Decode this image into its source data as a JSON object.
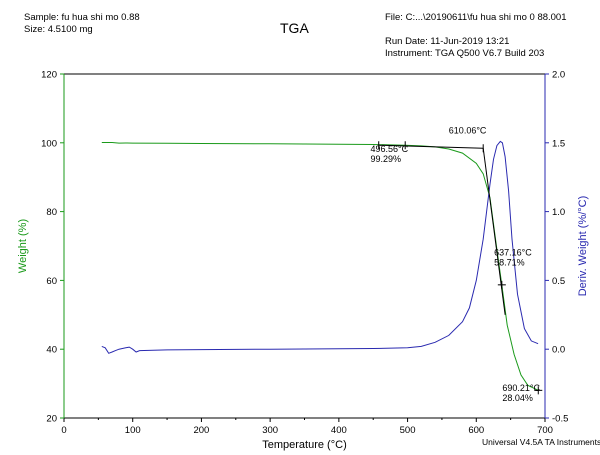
{
  "header": {
    "sample": "Sample: fu hua shi mo 0.88",
    "size": "Size:  4.5100 mg",
    "title": "TGA",
    "file": "File: C:...\\20190611\\fu hua shi mo 0 88.001",
    "run_date": "Run Date: 11-Jun-2019 13:21",
    "instrument": "Instrument: TGA Q500 V6.7 Build 203"
  },
  "footer": {
    "software": "Universal V4.5A TA Instruments"
  },
  "colors": {
    "weight": "#1a9a1a",
    "deriv": "#2a2ab0",
    "annotation": "#000000"
  },
  "chart_data": {
    "type": "line",
    "title": "TGA",
    "xlabel": "Temperature (°C)",
    "ylabel": "Weight (%)",
    "y2label": "Deriv. Weight (%/°C)",
    "xlim": [
      0,
      700
    ],
    "ylim": [
      20,
      120
    ],
    "y2lim": [
      -0.5,
      2.0
    ],
    "x_ticks": [
      0,
      100,
      200,
      300,
      400,
      500,
      600,
      700
    ],
    "y_ticks": [
      20,
      40,
      60,
      80,
      100,
      120
    ],
    "y2_ticks": [
      -0.5,
      0.0,
      0.5,
      1.0,
      1.5,
      2.0
    ],
    "x_tick_labels": [
      "0",
      "100",
      "200",
      "300",
      "400",
      "500",
      "600",
      "700"
    ],
    "y_tick_labels": [
      "20",
      "40",
      "60",
      "80",
      "100",
      "120"
    ],
    "y2_tick_labels": [
      "-0.5",
      "0.0",
      "0.5",
      "1.0",
      "1.5",
      "2.0"
    ],
    "series": [
      {
        "name": "Weight (%)",
        "axis": "left",
        "x": [
          55,
          70,
          80,
          90,
          100,
          150,
          200,
          300,
          400,
          450,
          496.56,
          520,
          540,
          560,
          580,
          600,
          610,
          620,
          630,
          637.16,
          645,
          655,
          665,
          675,
          690.21
        ],
        "values": [
          100.1,
          100.1,
          99.9,
          99.95,
          99.9,
          99.85,
          99.8,
          99.7,
          99.6,
          99.5,
          99.29,
          99.1,
          98.8,
          98.2,
          97.0,
          94.0,
          91.0,
          84.0,
          69.0,
          58.71,
          47.0,
          38.5,
          32.5,
          29.5,
          28.04
        ]
      },
      {
        "name": "Deriv. Weight (%/°C)",
        "axis": "right",
        "x": [
          55,
          60,
          65,
          70,
          75,
          80,
          90,
          95,
          100,
          105,
          110,
          150,
          200,
          300,
          400,
          450,
          500,
          520,
          540,
          560,
          580,
          590,
          600,
          610,
          615,
          620,
          625,
          630,
          635,
          638,
          642,
          647,
          652,
          660,
          670,
          680,
          690
        ],
        "values": [
          0.02,
          0.01,
          -0.03,
          -0.02,
          -0.01,
          0.0,
          0.01,
          0.015,
          0.0,
          -0.02,
          -0.01,
          -0.005,
          -0.003,
          0.0,
          0.003,
          0.005,
          0.01,
          0.02,
          0.05,
          0.1,
          0.2,
          0.3,
          0.5,
          0.8,
          1.0,
          1.2,
          1.38,
          1.48,
          1.51,
          1.5,
          1.4,
          1.15,
          0.8,
          0.4,
          0.15,
          0.06,
          0.04
        ]
      }
    ],
    "annotations": [
      {
        "label": "610.06°C",
        "x": 610.06,
        "y": 99.3
      },
      {
        "label": "496.56°C\n99.29%",
        "x": 496.56,
        "y": 99.29
      },
      {
        "label": "637.16°C\n58.71%",
        "x": 637.16,
        "y": 58.71
      },
      {
        "label": "690.21°C\n28.04%",
        "x": 690.21,
        "y": 28.04
      }
    ]
  }
}
